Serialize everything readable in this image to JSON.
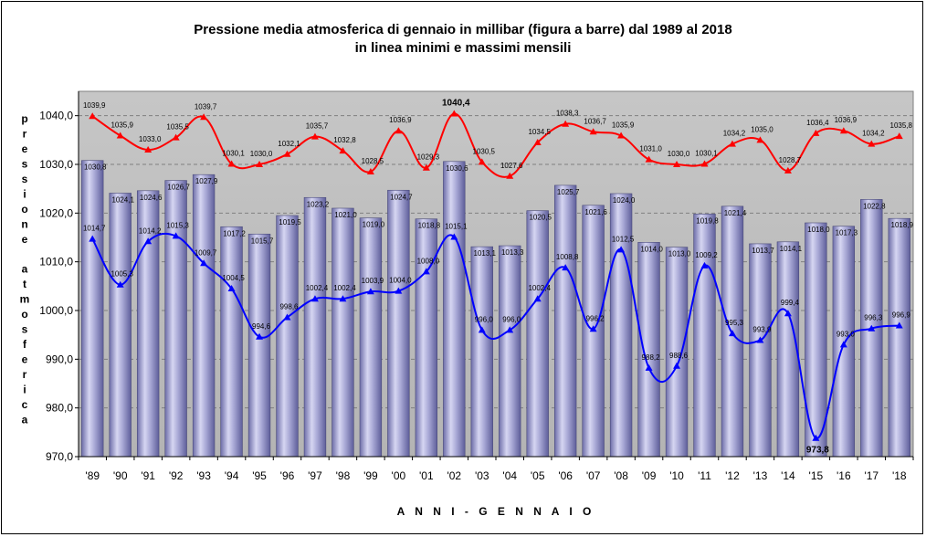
{
  "chart_data": {
    "type": "bar",
    "title_line1": "Pressione media atmosferica di gennaio in millibar (figura a barre) dal 1989 al 2018",
    "title_line2": "in linea minimi e massimi mensili",
    "xlabel": "A N N I - G E N N A I O",
    "ylabel": "pressione atmosferica",
    "ylim": [
      970,
      1045
    ],
    "yticks": [
      "970,0",
      "980,0",
      "990,0",
      "1000,0",
      "1010,0",
      "1020,0",
      "1030,0",
      "1040,0"
    ],
    "grid": "horizontal dashed",
    "categories": [
      "'89",
      "'90",
      "'91",
      "'92",
      "'93",
      "'94",
      "'95",
      "'96",
      "'97",
      "'98",
      "'99",
      "'00",
      "'01",
      "'02",
      "'03",
      "'04",
      "'05",
      "'06",
      "'07",
      "'08",
      "'09",
      "'10",
      "'11",
      "'12",
      "'13",
      "'14",
      "'15",
      "'16",
      "'17",
      "'18"
    ],
    "series": [
      {
        "type": "bar",
        "color": "#9a9ac8",
        "values": [
          1030.8,
          1024.1,
          1024.6,
          1026.7,
          1027.9,
          1017.2,
          1015.7,
          1019.5,
          1023.2,
          1021.0,
          1019.0,
          1024.7,
          1018.8,
          1030.6,
          1013.1,
          1013.3,
          1020.5,
          1025.7,
          1021.6,
          1024.0,
          1014.0,
          1013.0,
          1019.8,
          1021.4,
          1013.7,
          1014.1,
          1018.0,
          1017.3,
          1022.8,
          1018.9
        ],
        "labels": [
          "1030,8",
          "1024,1",
          "1024,6",
          "1026,7",
          "1027,9",
          "1017,2",
          "1015,7",
          "1019,5",
          "1023,2",
          "1021,0",
          "1019,0",
          "1024,7",
          "1018,8",
          "1030,6",
          "1013,1",
          "1013,3",
          "1020,5",
          "1025,7",
          "1021,6",
          "1024,0",
          "1014,0",
          "1013,0",
          "1019,8",
          "1021,4",
          "1013,7",
          "1014,1",
          "1018,0",
          "1017,3",
          "1022,8",
          "1018,9"
        ]
      },
      {
        "type": "line",
        "color": "#ff0000",
        "marker": "triangle",
        "values": [
          1039.9,
          1035.9,
          1033.0,
          1035.5,
          1039.7,
          1030.1,
          1030.0,
          1032.1,
          1035.7,
          1032.8,
          1028.5,
          1036.9,
          1029.3,
          1040.4,
          1030.5,
          1027.6,
          1034.5,
          1038.3,
          1036.7,
          1035.9,
          1031.0,
          1030.0,
          1030.1,
          1034.2,
          1035.0,
          1028.7,
          1036.4,
          1036.9,
          1034.2,
          1035.8
        ],
        "labels": [
          "1039,9",
          "1035,9",
          "1033,0",
          "1035,5",
          "1039,7",
          "1030,1",
          "1030,0",
          "1032,1",
          "1035,7",
          "1032,8",
          "1028,5",
          "1036,9",
          "1029,3",
          "1040,4",
          "1030,5",
          "1027,6",
          "1034,5",
          "1038,3",
          "1036,7",
          "1035,9",
          "1031,0",
          "1030,0",
          "1030,1",
          "1034,2",
          "1035,0",
          "1028,7",
          "1036,4",
          "1036,9",
          "1034,2",
          "1035,8"
        ],
        "bold_index": 13
      },
      {
        "type": "line",
        "color": "#0000ff",
        "marker": "triangle",
        "values": [
          1014.7,
          1005.3,
          1014.2,
          1015.3,
          1009.7,
          1004.5,
          994.6,
          998.6,
          1002.4,
          1002.4,
          1003.9,
          1004.0,
          1008.0,
          1015.1,
          996.0,
          996.0,
          1002.4,
          1008.8,
          996.2,
          1012.5,
          988.2,
          988.6,
          1009.2,
          995.3,
          993.9,
          999.4,
          973.8,
          993.0,
          996.3,
          996.9
        ],
        "labels": [
          "1014,7",
          "1005,3",
          "1014,2",
          "1015,3",
          "1009,7",
          "1004,5",
          "994,6",
          "998,6",
          "1002,4",
          "1002,4",
          "1003,9",
          "1004,0",
          "1008,0",
          "1015,1",
          "996,0",
          "996,0",
          "1002,4",
          "1008,8",
          "996,2",
          "1012,5",
          "988,2",
          "988,6",
          "1009,2",
          "995,3",
          "993,9",
          "999,4",
          "973,8",
          "993,0",
          "996,3",
          "996,9"
        ],
        "bold_index": 26
      }
    ]
  }
}
